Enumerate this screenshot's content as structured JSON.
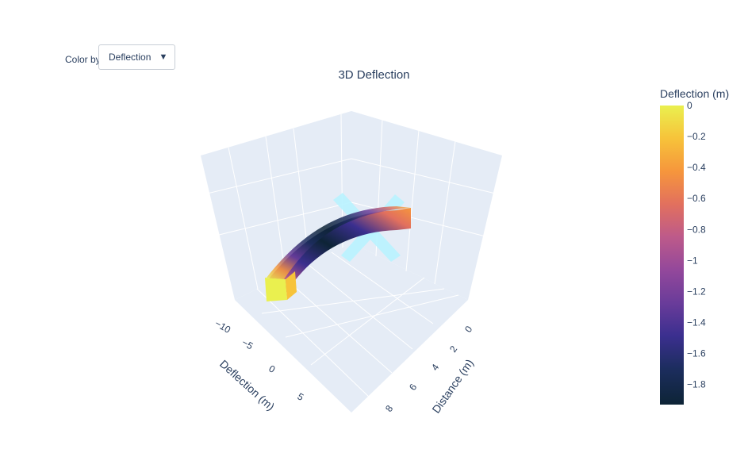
{
  "controls": {
    "color_by_label": "Color by",
    "color_by_value": "Deflection",
    "dropdown_icon": "triangle-down-icon"
  },
  "chart_data": {
    "type": "surface3d",
    "title": "3D Deflection",
    "x_axis": {
      "title": "Distance (m)",
      "ticks": [
        "0",
        "2",
        "4",
        "6",
        "8"
      ]
    },
    "y_axis": {
      "title": "Deflection (m)",
      "ticks": [
        "−10",
        "−5",
        "0",
        "5"
      ]
    },
    "colorbar": {
      "title": "Deflection (m)",
      "range": [
        -1.93,
        0
      ],
      "ticks": [
        "0",
        "−0.2",
        "−0.4",
        "−0.6",
        "−0.8",
        "−1",
        "−1.2",
        "−1.4",
        "−1.6",
        "−1.8"
      ],
      "tick_values": [
        0,
        -0.2,
        -0.4,
        -0.6,
        -0.8,
        -1,
        -1.2,
        -1.4,
        -1.6,
        -1.8
      ],
      "colorscale": "thermal",
      "colors": [
        "#0d2436",
        "#1c2d5e",
        "#3b2f8f",
        "#6a3c9a",
        "#93489b",
        "#bd5a8a",
        "#e2705e",
        "#f6963c",
        "#f7c33a",
        "#eaf04f"
      ]
    },
    "beam": {
      "description": "beam spanning distance 0 to 10 m, deflected downward with maximum near mid-span",
      "max_deflection": -1.93
    },
    "supports_color": "#b8f3ff",
    "grid": true,
    "background": "#e5ecf6"
  }
}
